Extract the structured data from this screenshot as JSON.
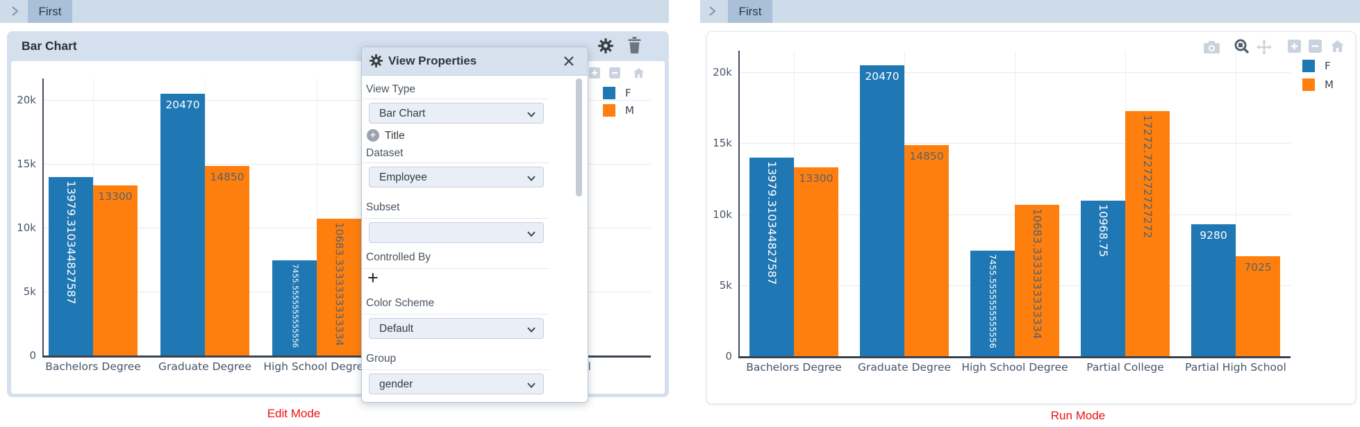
{
  "left_panel": {
    "tab_label": "First",
    "widget_title": "Bar Chart",
    "mode_label": "Edit Mode",
    "properties_panel": {
      "title": "View Properties",
      "view_type": {
        "label": "View Type",
        "value": "Bar Chart"
      },
      "title_section": {
        "label": "Title"
      },
      "dataset": {
        "label": "Dataset",
        "value": "Employee"
      },
      "subset": {
        "label": "Subset",
        "value": ""
      },
      "controlled_by": {
        "label": "Controlled By"
      },
      "color_scheme": {
        "label": "Color Scheme",
        "value": "Default"
      },
      "group": {
        "label": "Group",
        "value": "gender"
      }
    }
  },
  "right_panel": {
    "tab_label": "First",
    "mode_label": "Run Mode"
  },
  "legend": {
    "entries": [
      {
        "label": "F",
        "color": "#1f77b4"
      },
      {
        "label": "M",
        "color": "#ff7f0e"
      }
    ]
  },
  "chart_data": {
    "type": "bar",
    "title": "",
    "xlabel": "",
    "ylabel": "",
    "categories": [
      "Bachelors Degree",
      "Graduate Degree",
      "High School Degree",
      "Partial College",
      "Partial High School"
    ],
    "series": [
      {
        "name": "F",
        "color": "#1f77b4",
        "values": [
          13979.310344827587,
          20470,
          7455.555555555556,
          10968.75,
          9280
        ],
        "bar_labels": [
          "13979.310344827587",
          "20470",
          "7455.5555555555556",
          "10968.75",
          "9280"
        ]
      },
      {
        "name": "M",
        "color": "#ff7f0e",
        "values": [
          13300,
          14850,
          10683.333333333334,
          17272.727272727272,
          7025
        ],
        "bar_labels": [
          "13300",
          "14850",
          "10683.3333333333334",
          "17272.727272727272",
          "7025"
        ]
      }
    ],
    "ytick_labels": [
      "0",
      "5k",
      "10k",
      "15k",
      "20k"
    ],
    "ytick_values": [
      0,
      5000,
      10000,
      15000,
      20000
    ],
    "ylim": [
      0,
      21500
    ],
    "grid": true,
    "legend_position": "top-right"
  }
}
